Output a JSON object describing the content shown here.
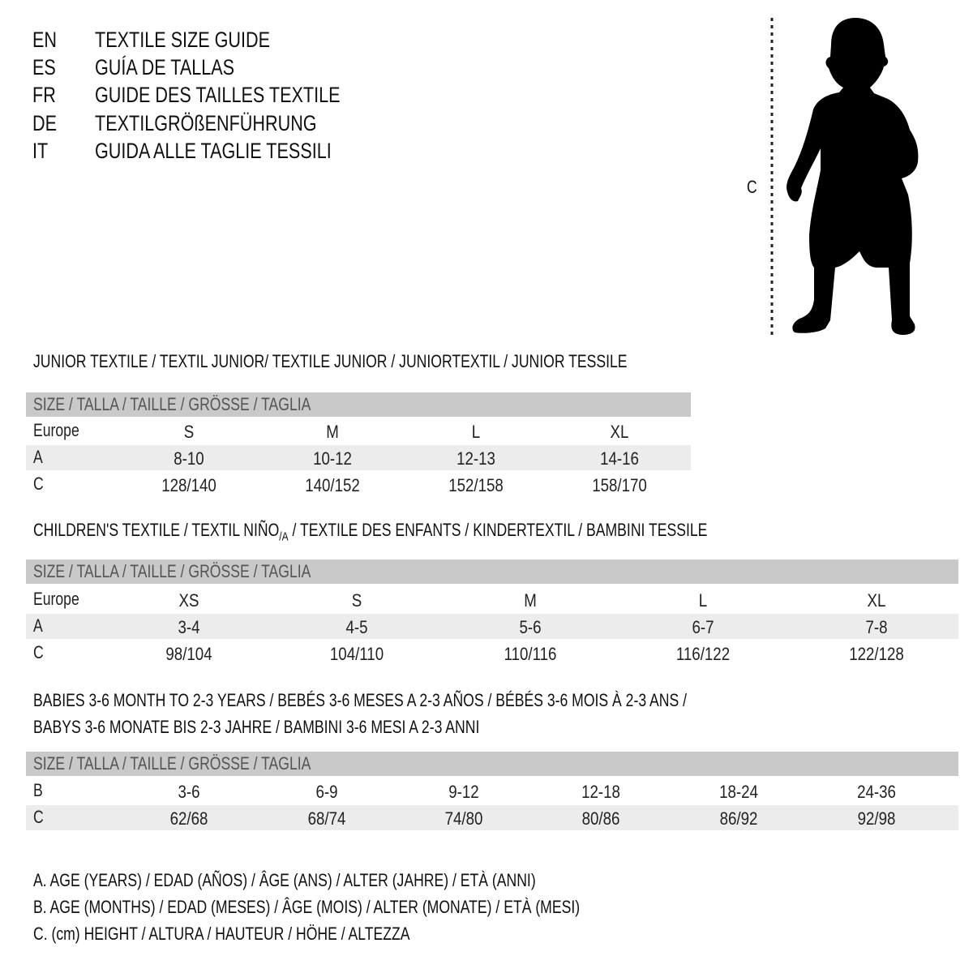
{
  "titles": [
    {
      "code": "EN",
      "text": "TEXTILE SIZE GUIDE"
    },
    {
      "code": "ES",
      "text": "GUÍA DE TALLAS"
    },
    {
      "code": "FR",
      "text": "GUIDE DES TAILLES TEXTILE"
    },
    {
      "code": "DE",
      "text": "TEXTILGRÖßENFÜHRUNG"
    },
    {
      "code": "IT",
      "text": "GUIDA ALLE TAGLIE TESSILI"
    }
  ],
  "figure": {
    "label": "C",
    "icon": "child-silhouette-icon"
  },
  "size_header": "SIZE / TALLA / TAILLE / GRÖSSE / TAGLIA",
  "junior": {
    "heading": "JUNIOR TEXTILE / TEXTIL JUNIOR/ TEXTILE JUNIOR / JUNIORTEXTIL / JUNIOR TESSILE",
    "rows": [
      {
        "label": "Europe",
        "values": [
          "S",
          "M",
          "L",
          "XL"
        ]
      },
      {
        "label": "A",
        "values": [
          "8-10",
          "10-12",
          "12-13",
          "14-16"
        ]
      },
      {
        "label": "C",
        "values": [
          "128/140",
          "140/152",
          "152/158",
          "158/170"
        ]
      }
    ]
  },
  "children": {
    "heading_a": "CHILDREN'S TEXTILE / TEXTIL NIÑO",
    "heading_sub": "/A",
    "heading_b": " / TEXTILE DES ENFANTS / KINDERTEXTIL / BAMBINI TESSILE",
    "rows": [
      {
        "label": "Europe",
        "values": [
          "XS",
          "S",
          "M",
          "L",
          "XL"
        ]
      },
      {
        "label": "A",
        "values": [
          "3-4",
          "4-5",
          "5-6",
          "6-7",
          "7-8"
        ]
      },
      {
        "label": "C",
        "values": [
          "98/104",
          "104/110",
          "110/116",
          "116/122",
          "122/128"
        ]
      }
    ]
  },
  "babies": {
    "heading_1": "BABIES 3-6 MONTH TO 2-3 YEARS / BEBÉS 3-6 MESES A 2-3 AÑOS / BÉBÉS 3-6 MOIS À 2-3 ANS /",
    "heading_2": "BABYS 3-6 MONATE BIS 2-3 JAHRE / BAMBINI 3-6 MESI A 2-3 ANNI",
    "rows": [
      {
        "label": "B",
        "values": [
          "3-6",
          "6-9",
          "9-12",
          "12-18",
          "18-24",
          "24-36"
        ]
      },
      {
        "label": "C",
        "values": [
          "62/68",
          "68/74",
          "74/80",
          "80/86",
          "86/92",
          "92/98"
        ]
      }
    ]
  },
  "legend": [
    "A. AGE (YEARS) / EDAD (AÑOS) / ÂGE (ANS) / ALTER (JAHRE) / ETÀ (ANNI)",
    "B. AGE (MONTHS) / EDAD (MESES) / ÂGE (MOIS) / ALTER (MONATE) / ETÀ (MESI)",
    "C. (cm) HEIGHT / ALTURA / HAUTEUR / HÖHE / ALTEZZA"
  ]
}
